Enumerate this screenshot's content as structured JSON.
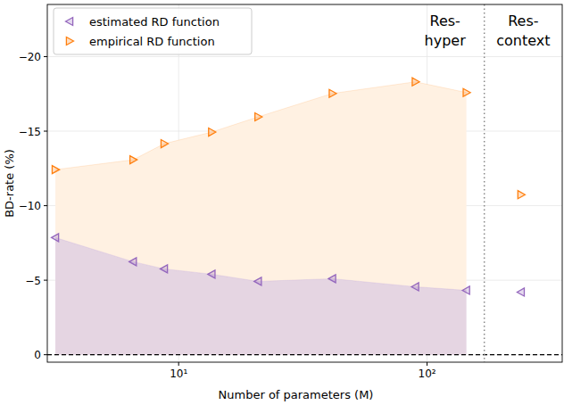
{
  "chart_data": {
    "type": "scatter",
    "x_label": "Number of parameters (M)",
    "y_label": "BD-rate (%)",
    "x": [
      3.19,
      6.56,
      8.75,
      13.6,
      20.9,
      41.6,
      89.8,
      144,
      239
    ],
    "series": [
      {
        "name": "estimated RD function",
        "color": "#9467bd",
        "marker": "triangle-left",
        "values": [
          -7.86,
          -6.24,
          -5.76,
          -5.4,
          -4.92,
          -5.1,
          -4.56,
          -4.32,
          -4.2
        ]
      },
      {
        "name": "empirical RD function",
        "color": "#ff7f0e",
        "marker": "triangle-right",
        "values": [
          -12.42,
          -13.08,
          -14.16,
          -14.94,
          -15.96,
          -17.53,
          -18.31,
          -17.59,
          -10.74
        ]
      }
    ],
    "divider": 170,
    "annotations": [
      [
        "Res-",
        "hyper"
      ],
      [
        "Res-",
        "context"
      ]
    ],
    "log": "x",
    "xlim": [
      2.96,
      350
    ],
    "xticks": [
      {
        "value": 10,
        "label": "10¹"
      },
      {
        "value": 100,
        "label": "10²"
      }
    ],
    "ylim": [
      0.5,
      -23.5
    ],
    "yticks": [
      {
        "value": 0,
        "label": "0"
      },
      {
        "value": -5,
        "label": "−5"
      },
      {
        "value": -10,
        "label": "−10"
      },
      {
        "value": -15,
        "label": "−15"
      },
      {
        "value": -20,
        "label": "−20"
      }
    ],
    "grid": true,
    "legend": "upper-left"
  }
}
